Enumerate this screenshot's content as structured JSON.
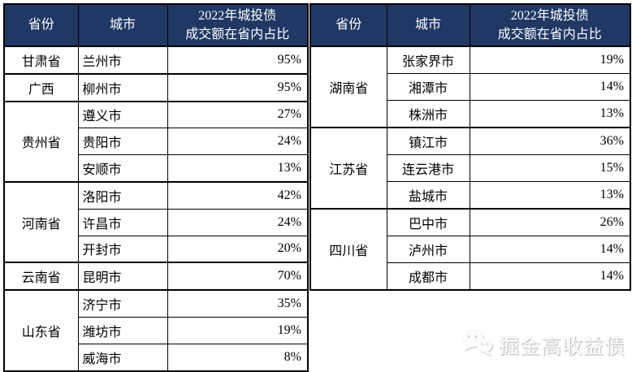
{
  "tables": [
    {
      "name": "left",
      "col_headers": {
        "province": "省份",
        "city": "城市",
        "pct_line1": "2022年城投债",
        "pct_line2": "成交额在省内占比"
      },
      "city_align": "left",
      "groups": [
        {
          "province": "甘肃省",
          "cities": [
            {
              "city": "兰州市",
              "pct": "95%"
            }
          ]
        },
        {
          "province": "广西",
          "cities": [
            {
              "city": "柳州市",
              "pct": "95%"
            }
          ]
        },
        {
          "province": "贵州省",
          "cities": [
            {
              "city": "遵义市",
              "pct": "27%"
            },
            {
              "city": "贵阳市",
              "pct": "24%"
            },
            {
              "city": "安顺市",
              "pct": "13%"
            }
          ]
        },
        {
          "province": "河南省",
          "cities": [
            {
              "city": "洛阳市",
              "pct": "42%"
            },
            {
              "city": "许昌市",
              "pct": "24%"
            },
            {
              "city": "开封市",
              "pct": "20%"
            }
          ]
        },
        {
          "province": "云南省",
          "cities": [
            {
              "city": "昆明市",
              "pct": "70%"
            }
          ]
        },
        {
          "province": "山东省",
          "cities": [
            {
              "city": "济宁市",
              "pct": "35%"
            },
            {
              "city": "潍坊市",
              "pct": "19%"
            },
            {
              "city": "威海市",
              "pct": "8%"
            }
          ]
        }
      ]
    },
    {
      "name": "right",
      "col_headers": {
        "province": "省份",
        "city": "城市",
        "pct_line1": "2022年城投债",
        "pct_line2": "成交额在省内占比"
      },
      "city_align": "center",
      "groups": [
        {
          "province": "湖南省",
          "cities": [
            {
              "city": "张家界市",
              "pct": "19%"
            },
            {
              "city": "湘潭市",
              "pct": "14%"
            },
            {
              "city": "株洲市",
              "pct": "13%"
            }
          ]
        },
        {
          "province": "江苏省",
          "cities": [
            {
              "city": "镇江市",
              "pct": "36%"
            },
            {
              "city": "连云港市",
              "pct": "15%"
            },
            {
              "city": "盐城市",
              "pct": "13%"
            }
          ]
        },
        {
          "province": "四川省",
          "cities": [
            {
              "city": "巴中市",
              "pct": "26%"
            },
            {
              "city": "泸州市",
              "pct": "14%"
            },
            {
              "city": "成都市",
              "pct": "14%"
            }
          ]
        }
      ]
    }
  ],
  "watermark": {
    "text": "掘金高收益债",
    "icon": "wechat-icon"
  },
  "colors": {
    "header_bg": "#1f3864",
    "header_text": "#ffffff",
    "border": "#000000",
    "watermark": "#fbfbfb"
  },
  "chart_data": {
    "type": "table",
    "title": "2022年城投债成交额在省内占比",
    "columns": [
      "省份",
      "城市",
      "2022年城投债成交额在省内占比"
    ],
    "rows": [
      [
        "甘肃省",
        "兰州市",
        "95%"
      ],
      [
        "广西",
        "柳州市",
        "95%"
      ],
      [
        "贵州省",
        "遵义市",
        "27%"
      ],
      [
        "贵州省",
        "贵阳市",
        "24%"
      ],
      [
        "贵州省",
        "安顺市",
        "13%"
      ],
      [
        "河南省",
        "洛阳市",
        "42%"
      ],
      [
        "河南省",
        "许昌市",
        "24%"
      ],
      [
        "河南省",
        "开封市",
        "20%"
      ],
      [
        "云南省",
        "昆明市",
        "70%"
      ],
      [
        "山东省",
        "济宁市",
        "35%"
      ],
      [
        "山东省",
        "潍坊市",
        "19%"
      ],
      [
        "山东省",
        "威海市",
        "8%"
      ],
      [
        "湖南省",
        "张家界市",
        "19%"
      ],
      [
        "湖南省",
        "湘潭市",
        "14%"
      ],
      [
        "湖南省",
        "株洲市",
        "13%"
      ],
      [
        "江苏省",
        "镇江市",
        "36%"
      ],
      [
        "江苏省",
        "连云港市",
        "15%"
      ],
      [
        "江苏省",
        "盐城市",
        "13%"
      ],
      [
        "四川省",
        "巴中市",
        "26%"
      ],
      [
        "四川省",
        "泸州市",
        "14%"
      ],
      [
        "四川省",
        "成都市",
        "14%"
      ]
    ]
  }
}
